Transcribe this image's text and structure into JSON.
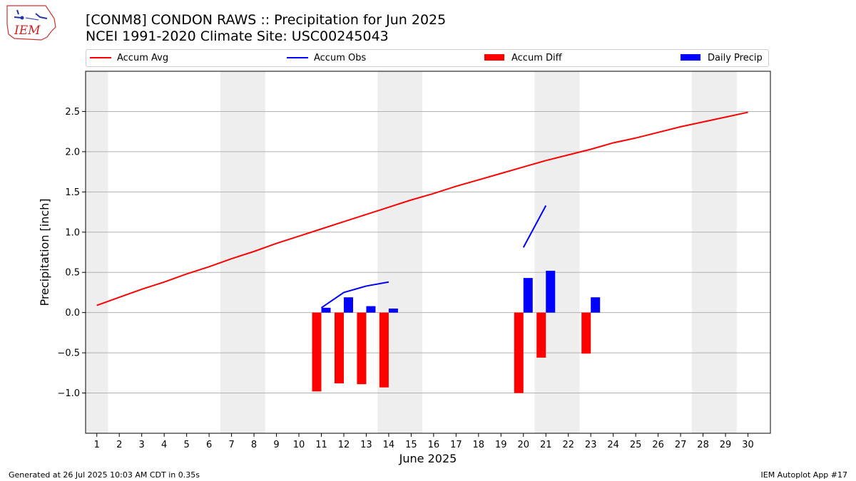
{
  "header": {
    "title_line1": "[CONM8] CONDON RAWS :: Precipitation for Jun 2025",
    "title_line2": "NCEI 1991-2020 Climate Site: USC00245043",
    "logo_text": "IEM"
  },
  "footer": {
    "left": "Generated at 26 Jul 2025 10:03 AM CDT in 0.35s",
    "right": "IEM Autoplot App #17"
  },
  "legend": {
    "placement": "top",
    "items": [
      {
        "label": "Accum Avg",
        "kind": "line",
        "color": "#ff0000"
      },
      {
        "label": "Accum Obs",
        "kind": "line",
        "color": "#0000ff"
      },
      {
        "label": "Accum Diff",
        "kind": "bar",
        "color": "#ff0000"
      },
      {
        "label": "Daily Precip",
        "kind": "bar",
        "color": "#0000ff"
      }
    ]
  },
  "chart_data": {
    "type": "bar",
    "xlabel": "June 2025",
    "ylabel": "Precipitation [inch]",
    "xlim": [
      0.5,
      31
    ],
    "ylim": [
      -1.5,
      3.0
    ],
    "yticks": [
      -1.0,
      -0.5,
      0.0,
      0.5,
      1.0,
      1.5,
      2.0,
      2.5
    ],
    "ytick_labels": [
      "−1.0",
      "−0.5",
      "0.0",
      "0.5",
      "1.0",
      "1.5",
      "2.0",
      "2.5"
    ],
    "xticks": [
      1,
      2,
      3,
      4,
      5,
      6,
      7,
      8,
      9,
      10,
      11,
      12,
      13,
      14,
      15,
      16,
      17,
      18,
      19,
      20,
      21,
      22,
      23,
      24,
      25,
      26,
      27,
      28,
      29,
      30
    ],
    "grid": "horizontal",
    "weekend_shading": [
      [
        0.5,
        1.5
      ],
      [
        6.5,
        8.5
      ],
      [
        13.5,
        15.5
      ],
      [
        20.5,
        22.5
      ],
      [
        27.5,
        29.5
      ]
    ],
    "colors": {
      "avg": "#ff0000",
      "obs": "#0000ff",
      "diff": "#ff0000",
      "daily": "#0000ff",
      "shade": "#eeeeee",
      "grid": "#b0b0b0"
    },
    "series": [
      {
        "name": "Accum Avg",
        "kind": "line",
        "x": [
          1,
          2,
          3,
          4,
          5,
          6,
          7,
          8,
          9,
          10,
          11,
          12,
          13,
          14,
          15,
          16,
          17,
          18,
          19,
          20,
          21,
          22,
          23,
          24,
          25,
          26,
          27,
          28,
          29,
          30
        ],
        "values": [
          0.09,
          0.19,
          0.29,
          0.38,
          0.48,
          0.57,
          0.67,
          0.76,
          0.86,
          0.95,
          1.04,
          1.13,
          1.22,
          1.31,
          1.4,
          1.48,
          1.57,
          1.65,
          1.73,
          1.81,
          1.89,
          1.96,
          2.03,
          2.11,
          2.17,
          2.24,
          2.31,
          2.37,
          2.43,
          2.49
        ]
      },
      {
        "name": "Accum Obs",
        "kind": "line",
        "segments": [
          {
            "x": [
              11,
              12,
              13,
              14
            ],
            "values": [
              0.06,
              0.25,
              0.33,
              0.38
            ]
          },
          {
            "x": [
              20,
              21
            ],
            "values": [
              0.81,
              1.33
            ]
          }
        ]
      },
      {
        "name": "Accum Diff",
        "kind": "bar",
        "x": [
          11,
          12,
          13,
          14,
          20,
          21,
          23
        ],
        "values": [
          -0.98,
          -0.88,
          -0.89,
          -0.93,
          -1.0,
          -0.56,
          -0.51
        ]
      },
      {
        "name": "Daily Precip",
        "kind": "bar",
        "x": [
          11,
          12,
          13,
          14,
          20,
          21,
          23
        ],
        "values": [
          0.06,
          0.19,
          0.08,
          0.05,
          0.43,
          0.52,
          0.19
        ]
      }
    ]
  }
}
